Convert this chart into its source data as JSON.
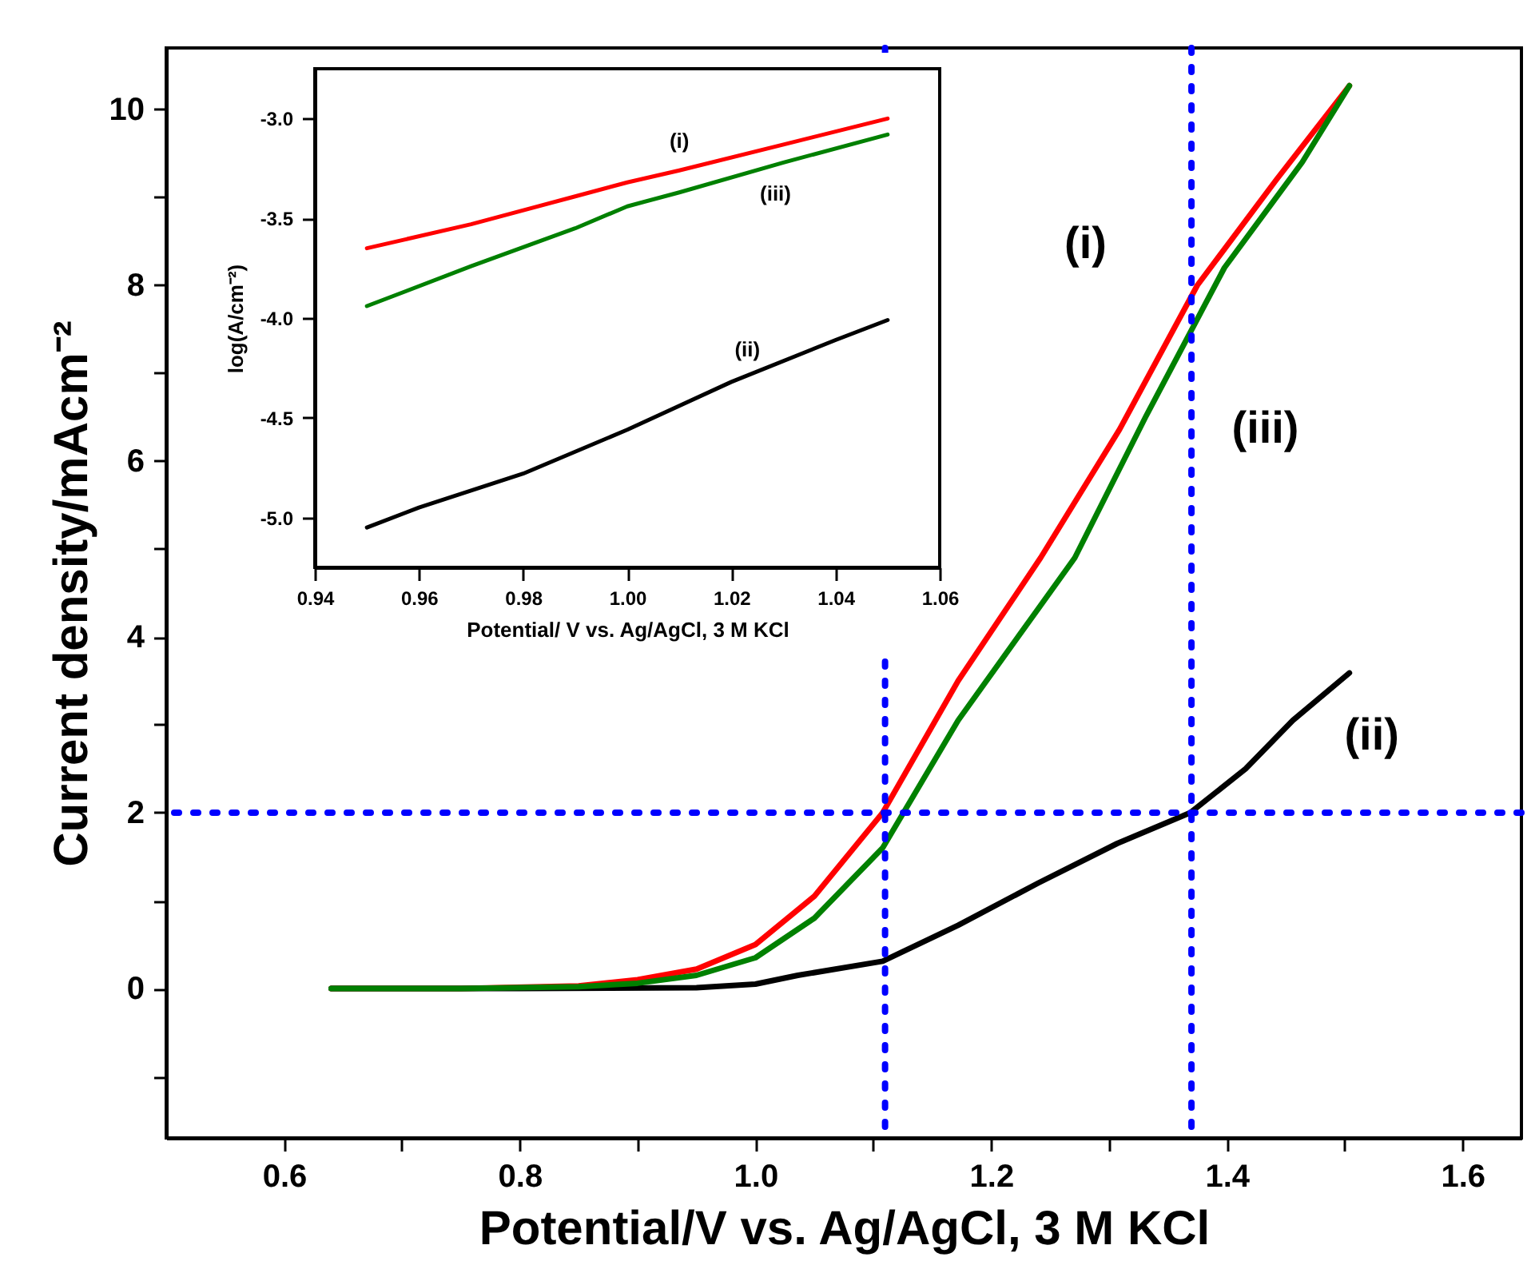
{
  "chart_data": [
    {
      "type": "line",
      "xlabel": "Potential/V vs. Ag/AgCl, 3 M KCl",
      "ylabel": "Current density/mAcm⁻²",
      "xlim": [
        0.5,
        1.65
      ],
      "xticks": [
        0.6,
        {
          "value": 0.7,
          "label": null
        },
        0.8,
        {
          "value": 0.9,
          "label": null
        },
        {
          "value": 1.0,
          "label": "1.0"
        },
        {
          "value": 1.1,
          "label": null
        },
        1.2,
        {
          "value": 1.3,
          "label": null
        },
        1.4,
        {
          "value": 1.5,
          "label": null
        },
        1.6
      ],
      "ylim": [
        -1.7,
        10.7
      ],
      "yticks": [
        {
          "value": -1,
          "label": null
        },
        0,
        {
          "value": 1,
          "label": null
        },
        2,
        {
          "value": 3,
          "label": null
        },
        4,
        {
          "value": 5,
          "label": null
        },
        6,
        {
          "value": 7,
          "label": null
        },
        8,
        {
          "value": 9,
          "label": null
        },
        10
      ],
      "grid": false,
      "series": [
        {
          "name": "(i)",
          "color": "#ff0000",
          "x": [
            0.64,
            0.75,
            0.85,
            0.9,
            0.95,
            1.0,
            1.05,
            1.108,
            1.172,
            1.242,
            1.309,
            1.375,
            1.442,
            1.504
          ],
          "values": [
            0,
            0,
            0.03,
            0.1,
            0.22,
            0.5,
            1.05,
            2.0,
            3.5,
            4.9,
            6.36,
            8.0,
            9.2,
            10.27
          ]
        },
        {
          "name": "(ii)",
          "color": "#000000",
          "x": [
            0.64,
            0.8,
            0.95,
            1.0,
            1.036,
            1.108,
            1.172,
            1.24,
            1.307,
            1.369,
            1.416,
            1.456,
            1.504
          ],
          "values": [
            0,
            0,
            0.01,
            0.05,
            0.15,
            0.31,
            0.72,
            1.2,
            1.65,
            2.0,
            2.5,
            3.05,
            3.59
          ]
        },
        {
          "name": "(iii)",
          "color": "#008000",
          "x": [
            0.64,
            0.75,
            0.85,
            0.9,
            0.95,
            1.0,
            1.05,
            1.108,
            1.172,
            1.271,
            1.331,
            1.398,
            1.464,
            1.504
          ],
          "values": [
            0,
            0,
            0.02,
            0.06,
            0.15,
            0.35,
            0.8,
            1.6,
            3.05,
            4.9,
            6.5,
            8.2,
            9.4,
            10.27
          ]
        }
      ],
      "ref_lines": [
        {
          "axis": "y",
          "value": 2,
          "color": "#0000ff",
          "line_style": "dotted"
        },
        {
          "axis": "x",
          "value": 1.11,
          "color": "#0000ff",
          "line_style": "dotted"
        },
        {
          "axis": "x",
          "value": 1.37,
          "color": "#0000ff",
          "line_style": "dotted"
        }
      ]
    },
    {
      "type": "line",
      "xlabel": "Potential/ V vs. Ag/AgCl, 3 M KCl",
      "ylabel": "log(A/cm⁻²)",
      "xlim": [
        0.94,
        1.06
      ],
      "xticks": [
        0.94,
        0.96,
        0.98,
        {
          "value": 1.0,
          "label": "1.00"
        },
        1.02,
        1.04,
        1.06
      ],
      "ylim": [
        -5.25,
        -2.75
      ],
      "yticks": [
        {
          "value": -5.0,
          "label": "-5.0"
        },
        -4.5,
        {
          "value": -4.0,
          "label": "-4.0"
        },
        -3.5,
        {
          "value": -3.0,
          "label": "-3.0"
        }
      ],
      "grid": false,
      "series": [
        {
          "name": "(i)",
          "color": "#ff0000",
          "x": [
            0.95,
            0.97,
            0.99,
            1.0,
            1.01,
            1.03,
            1.05
          ],
          "values": [
            -3.65,
            -3.53,
            -3.39,
            -3.32,
            -3.26,
            -3.13,
            -3.0
          ]
        },
        {
          "name": "(ii)",
          "color": "#000000",
          "x": [
            0.95,
            0.96,
            0.98,
            1.0,
            1.02,
            1.04,
            1.05
          ],
          "values": [
            -5.05,
            -4.95,
            -4.78,
            -4.56,
            -4.32,
            -4.11,
            -4.01
          ]
        },
        {
          "name": "(iii)",
          "color": "#008000",
          "x": [
            0.95,
            0.97,
            0.99,
            1.0,
            1.01,
            1.03,
            1.05
          ],
          "values": [
            -3.94,
            -3.74,
            -3.55,
            -3.44,
            -3.37,
            -3.22,
            -3.08
          ]
        }
      ]
    }
  ]
}
